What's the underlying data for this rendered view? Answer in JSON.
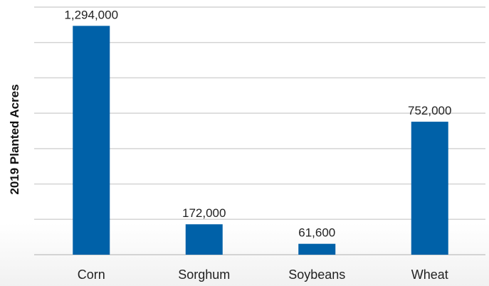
{
  "chart_data": {
    "type": "bar",
    "ylabel": "2019 Planted Acres",
    "categories": [
      "Corn",
      "Sorghum",
      "Soybeans",
      "Wheat"
    ],
    "values": [
      1294000,
      172000,
      61600,
      752000
    ],
    "value_labels": [
      "1,294,000",
      "172,000",
      "61,600",
      "752,000"
    ],
    "ylim": [
      0,
      1400000
    ],
    "y_tick_step": 200000,
    "grid": true,
    "legend": "none",
    "bar_color": "#0061a8"
  }
}
